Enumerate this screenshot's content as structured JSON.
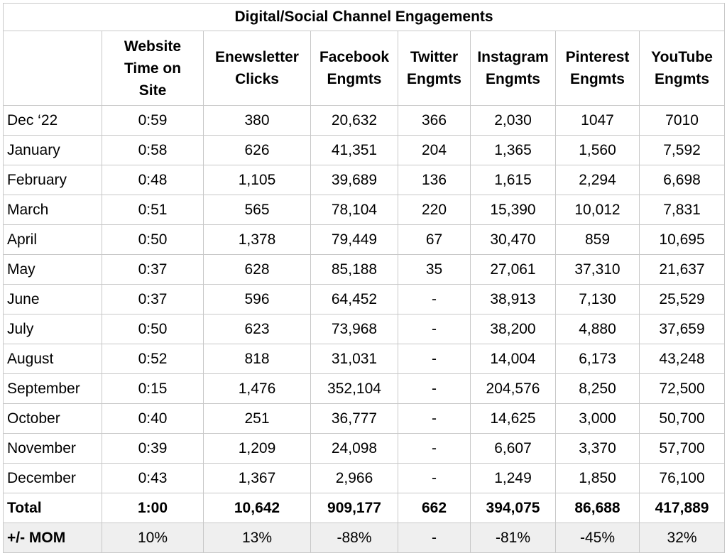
{
  "title": "Digital/Social Channel Engagements",
  "headers": [
    [
      "Website",
      "Time on",
      "Site"
    ],
    [
      "Enewsletter",
      "Clicks"
    ],
    [
      "Facebook",
      "Engmts"
    ],
    [
      "Twitter",
      "Engmts"
    ],
    [
      "Instagram",
      "Engmts"
    ],
    [
      "Pinterest",
      "Engmts"
    ],
    [
      "YouTube",
      "Engmts"
    ]
  ],
  "rows": [
    [
      "Dec ‘22",
      "0:59",
      "380",
      "20,632",
      "366",
      "2,030",
      "1047",
      "7010"
    ],
    [
      "January",
      "0:58",
      "626",
      "41,351",
      "204",
      "1,365",
      "1,560",
      "7,592"
    ],
    [
      "February",
      "0:48",
      "1,105",
      "39,689",
      "136",
      "1,615",
      "2,294",
      "6,698"
    ],
    [
      "March",
      "0:51",
      "565",
      "78,104",
      "220",
      "15,390",
      "10,012",
      "7,831"
    ],
    [
      "April",
      "0:50",
      "1,378",
      "79,449",
      "67",
      "30,470",
      "859",
      "10,695"
    ],
    [
      "May",
      "0:37",
      "628",
      "85,188",
      "35",
      "27,061",
      "37,310",
      "21,637"
    ],
    [
      "June",
      "0:37",
      "596",
      "64,452",
      "-",
      "38,913",
      "7,130",
      "25,529"
    ],
    [
      "July",
      "0:50",
      "623",
      "73,968",
      "-",
      "38,200",
      "4,880",
      "37,659"
    ],
    [
      "August",
      "0:52",
      "818",
      "31,031",
      "-",
      "14,004",
      "6,173",
      "43,248"
    ],
    [
      "September",
      "0:15",
      "1,476",
      "352,104",
      "-",
      "204,576",
      "8,250",
      "72,500"
    ],
    [
      "October",
      "0:40",
      "251",
      "36,777",
      "-",
      "14,625",
      "3,000",
      "50,700"
    ],
    [
      "November",
      "0:39",
      "1,209",
      "24,098",
      "-",
      "6,607",
      "3,370",
      "57,700"
    ],
    [
      "December",
      "0:43",
      "1,367",
      "2,966",
      "-",
      "1,249",
      "1,850",
      "76,100"
    ]
  ],
  "total": [
    "Total",
    "1:00",
    "10,642",
    "909,177",
    "662",
    "394,075",
    "86,688",
    "417,889"
  ],
  "mom": [
    "+/- MOM",
    "10%",
    "13%",
    "-88%",
    "-",
    "-81%",
    "-45%",
    "32%"
  ]
}
